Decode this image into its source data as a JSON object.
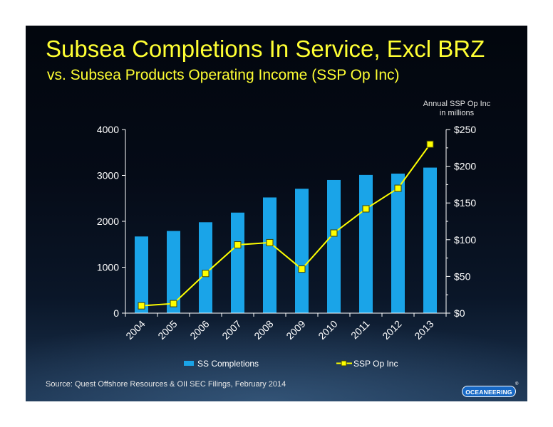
{
  "header": {
    "title": "Subsea Completions In Service, Excl BRZ",
    "subtitle": "vs. Subsea Products Operating Income (SSP Op Inc)"
  },
  "axis_note": {
    "line1": "Annual SSP Op Inc",
    "line2": "in millions"
  },
  "footer": {
    "source": "Source:  Quest Offshore Resources & OII SEC Filings, February 2014",
    "logo_text": "OCEANEERING",
    "logo_mark": "®"
  },
  "colors": {
    "bar": "#1aa4e8",
    "line": "#ffff00",
    "marker_stroke": "#444400",
    "axis": "#ffffff",
    "title": "#ffff33"
  },
  "chart_data": {
    "type": "bar",
    "categories": [
      "2004",
      "2005",
      "2006",
      "2007",
      "2008",
      "2009",
      "2010",
      "2011",
      "2012",
      "2013"
    ],
    "series": [
      {
        "name": "SS Completions",
        "type": "bar",
        "axis": "left",
        "values": [
          1670,
          1790,
          1980,
          2190,
          2520,
          2710,
          2900,
          3010,
          3040,
          3170
        ]
      },
      {
        "name": "SSP Op Inc",
        "type": "line",
        "axis": "right",
        "values": [
          10,
          13,
          54,
          93,
          96,
          60,
          109,
          142,
          170,
          230
        ]
      }
    ],
    "y_left": {
      "min": 0,
      "max": 4000,
      "ticks": [
        "0",
        "1000",
        "2000",
        "3000",
        "4000"
      ]
    },
    "y_right": {
      "min": 0,
      "max": 250,
      "ticks": [
        "$0",
        "$50",
        "$100",
        "$150",
        "$200",
        "$250"
      ]
    },
    "grid": false,
    "legend": "bottom"
  }
}
